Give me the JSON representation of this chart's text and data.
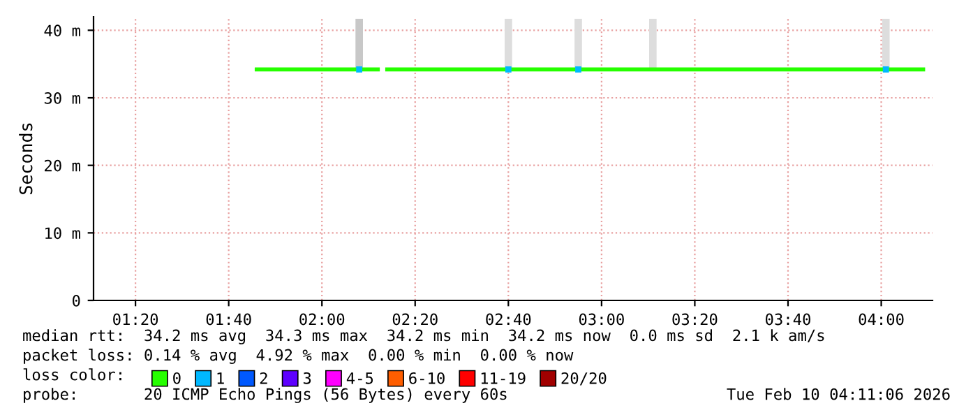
{
  "chart_data": {
    "type": "line",
    "ylabel": "Seconds",
    "xlim": [
      "2026-02-10T01:11",
      "2026-02-10T04:11"
    ],
    "xticks": [
      {
        "value": "2026-02-10T01:20",
        "label": "01:20"
      },
      {
        "value": "2026-02-10T01:40",
        "label": "01:40"
      },
      {
        "value": "2026-02-10T02:00",
        "label": "02:00"
      },
      {
        "value": "2026-02-10T02:20",
        "label": "02:20"
      },
      {
        "value": "2026-02-10T02:40",
        "label": "02:40"
      },
      {
        "value": "2026-02-10T03:00",
        "label": "03:00"
      },
      {
        "value": "2026-02-10T03:20",
        "label": "03:20"
      },
      {
        "value": "2026-02-10T03:40",
        "label": "03:40"
      },
      {
        "value": "2026-02-10T04:00",
        "label": "04:00"
      }
    ],
    "ylim": [
      0,
      42
    ],
    "yticks": [
      0,
      {
        "value": 10,
        "label": "10 m"
      },
      {
        "value": 20,
        "label": "20 m"
      },
      {
        "value": 30,
        "label": "30 m"
      },
      {
        "value": 40,
        "label": "40 m"
      }
    ],
    "grid": true,
    "legend": "bottom",
    "legend_title": "loss color:",
    "series": [
      {
        "type": "bar",
        "x": [
          "2026-02-10T02:08",
          "2026-02-10T02:40",
          "2026-02-10T02:55",
          "2026-02-10T03:11",
          "2026-02-10T04:01"
        ],
        "base": [
          34.2,
          34.2,
          34.2,
          34.2,
          34.2
        ],
        "values": [
          7.5,
          7.5,
          7.5,
          7.5,
          7.5
        ],
        "colors": [
          "#c8c8c8",
          "#dddddd",
          "#dddddd",
          "#dddddd",
          "#dddddd"
        ]
      },
      {
        "name": "0",
        "color": "#26ff00",
        "x": [
          "2026-02-10T01:46",
          "2026-02-10T02:12",
          "2026-02-10T02:13",
          "2026-02-10T02:14",
          "2026-02-10T04:09"
        ],
        "values": [
          34.2,
          34.2,
          null,
          34.2,
          34.2
        ]
      },
      {
        "name": "1",
        "type": "scatter",
        "marker": "square",
        "color": "#00b8ff",
        "x": [
          "2026-02-10T02:08",
          "2026-02-10T02:40",
          "2026-02-10T02:55",
          "2026-02-10T04:01"
        ],
        "values": [
          34.2,
          34.2,
          34.2,
          34.2
        ]
      },
      {
        "name": "2",
        "type": "scatter",
        "marker": "square",
        "color": "#0059ff"
      },
      {
        "name": "3",
        "type": "scatter",
        "marker": "square",
        "color": "#5e00ff"
      },
      {
        "name": "4-5",
        "type": "scatter",
        "marker": "square",
        "color": "#ff00ff"
      },
      {
        "name": "6-10",
        "type": "scatter",
        "marker": "square",
        "color": "#ff5e00"
      },
      {
        "name": "11-19",
        "type": "scatter",
        "marker": "square",
        "color": "#ff0000"
      },
      {
        "name": "20/20",
        "type": "scatter",
        "marker": "square",
        "color": "#a10000"
      }
    ],
    "annotations": [
      "median rtt:  34.2 ms avg  34.3 ms max  34.2 ms min  34.2 ms now  0.0 ms sd  2.1 k am/s",
      "packet loss: 0.14 % avg  4.92 % max  0.00 % min  0.00 % now",
      "probe:       20 ICMP Echo Pings (56 Bytes) every 60s",
      "Tue Feb 10 04:11:06 2026"
    ]
  }
}
